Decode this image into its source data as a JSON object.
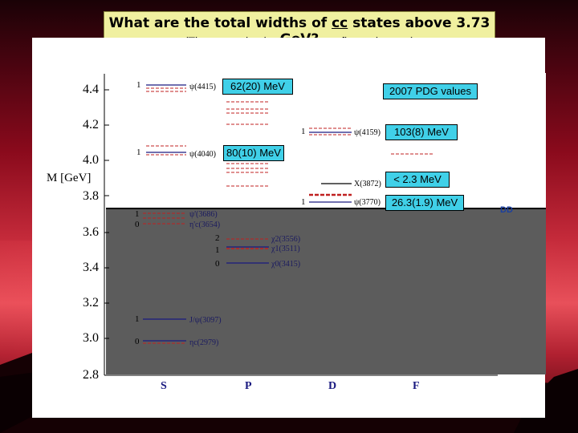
{
  "title": {
    "main_prefix": "What are the total widths of ",
    "main_cc": "cc",
    "main_suffix": " states above 3.73 GeV?",
    "subtitle": "(These are dominated by open-flavor decays.)"
  },
  "axis": {
    "ylabel": "M [GeV]",
    "yticks": [
      "4.4",
      "4.2",
      "4.0",
      "3.8",
      "3.6",
      "3.4",
      "3.2",
      "3.0",
      "2.8"
    ],
    "categories": [
      "S",
      "P",
      "D",
      "F"
    ]
  },
  "threshold_label": "DD",
  "states": [
    {
      "jpc": "1",
      "name": "ψ(4415)"
    },
    {
      "jpc": "1",
      "name": "ψ(4040)"
    },
    {
      "jpc": "1",
      "name": "ψ'(3686)"
    },
    {
      "jpc": "0",
      "name": "η'c(3654)"
    },
    {
      "jpc": "1",
      "name": "J/ψ(3097)"
    },
    {
      "jpc": "0",
      "name": "ηc(2979)"
    },
    {
      "jpc": "2",
      "name": "χ2(3556)"
    },
    {
      "jpc": "1",
      "name": "χ1(3511)"
    },
    {
      "jpc": "0",
      "name": "χ0(3415)"
    },
    {
      "jpc": "1",
      "name": "ψ(4159)"
    },
    {
      "jpc": "",
      "name": "X(3872)"
    },
    {
      "jpc": "1",
      "name": "ψ(3770)"
    }
  ],
  "callouts": {
    "psi4415": "62(20) MeV",
    "pdg": "2007 PDG values",
    "psi4159": "103(8) MeV",
    "psi4040": "80(10) MeV",
    "x3872": "< 2.3 MeV",
    "psi3770": "26.3(1.9) MeV"
  },
  "colors": {
    "title_bg": "#f0f0a0",
    "callout_bg": "#40d0e8",
    "exp_line": "#1a1a80",
    "theory_line": "#c02020"
  }
}
